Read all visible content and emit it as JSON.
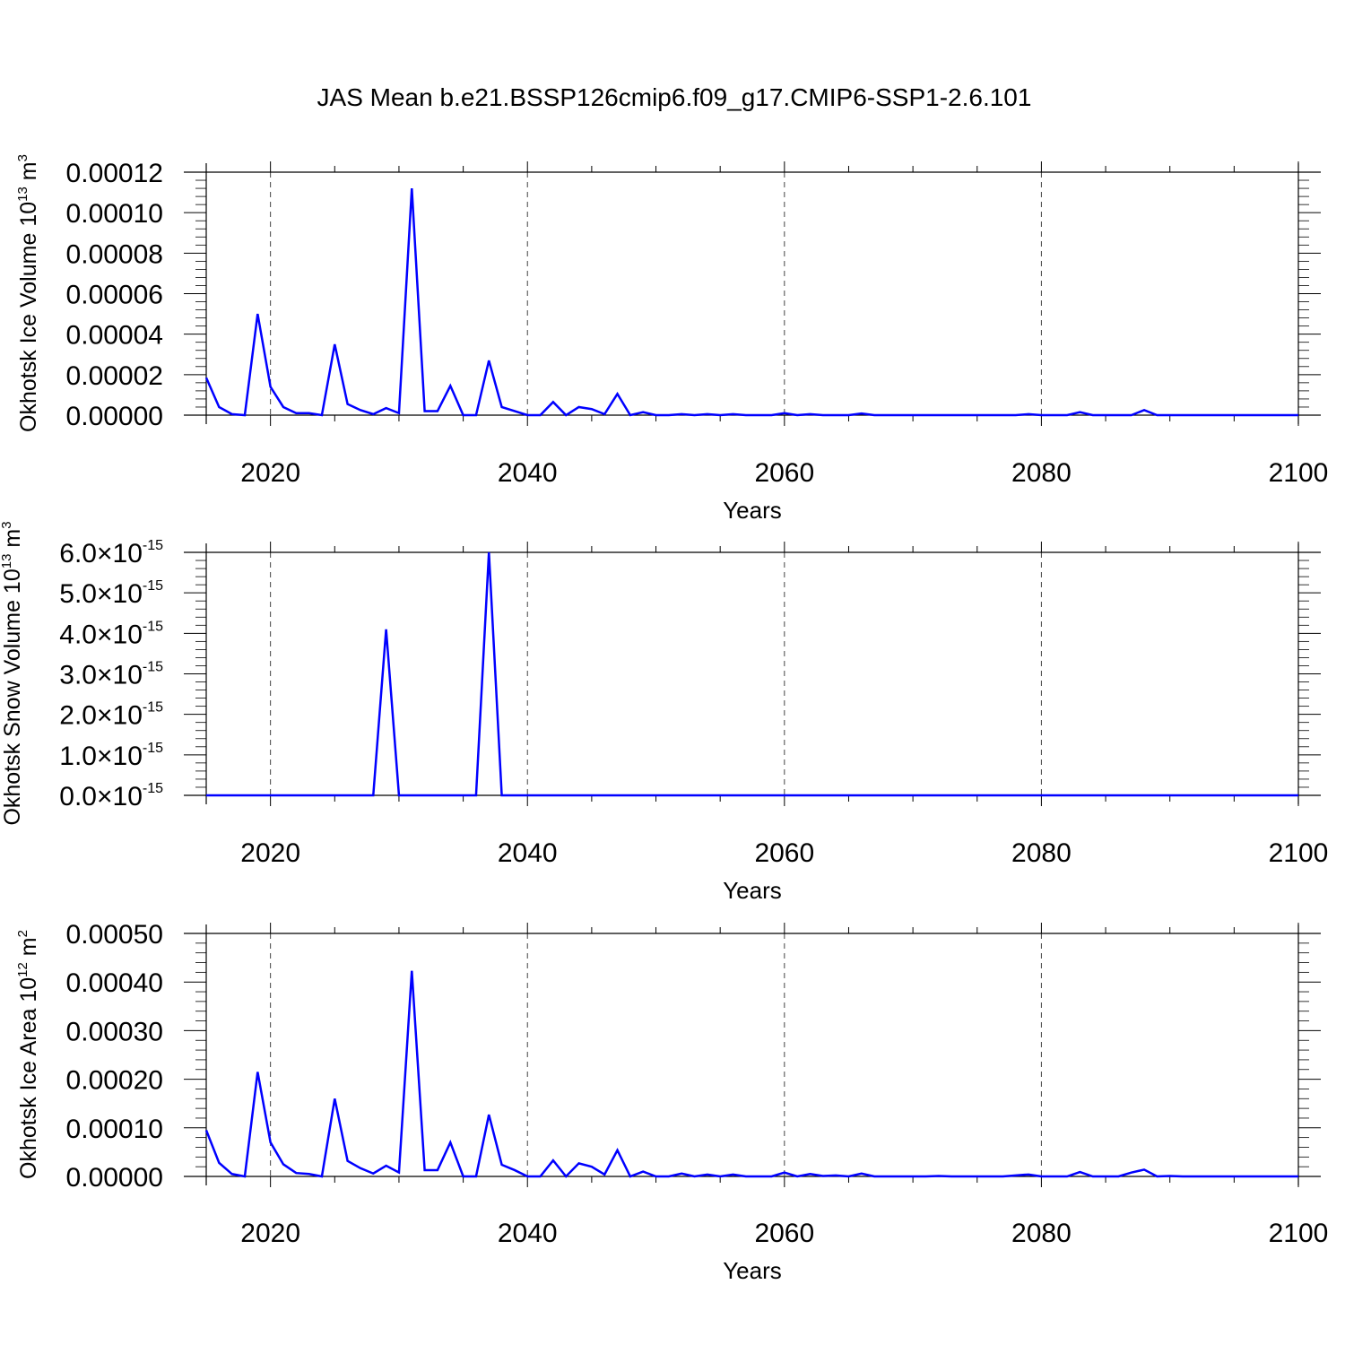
{
  "title": "JAS Mean b.e21.BSSP126cmip6.f09_g17.CMIP6-SSP1-2.6.101",
  "chart_data": [
    {
      "type": "line",
      "ylabel": "Okhotsk Ice Volume 10",
      "ylabel_exp": "13",
      "ylabel_unit": " m",
      "ylabel_unit_exp": "3",
      "xlabel": "Years",
      "xlim": [
        2015,
        2100
      ],
      "ylim": [
        0,
        0.00012
      ],
      "xticks": [
        "2020",
        "2040",
        "2060",
        "2080",
        "2100"
      ],
      "yticks": [
        "0.00000",
        "0.00002",
        "0.00004",
        "0.00006",
        "0.00008",
        "0.00010",
        "0.00012"
      ],
      "grid": "vertical dashed at major x ticks",
      "color": "#0000ff",
      "x_start": 2015,
      "values": [
        1.85e-05,
        4e-06,
        5e-07,
        0.0,
        5e-05,
        1.4e-05,
        4e-06,
        1e-06,
        1e-06,
        0.0,
        3.5e-05,
        5.5e-06,
        2.5e-06,
        5e-07,
        3.5e-06,
        1e-06,
        0.000112,
        2e-06,
        2e-06,
        1.45e-05,
        0.0,
        0.0,
        2.7e-05,
        4e-06,
        2e-06,
        0.0,
        0.0,
        6.5e-06,
        0.0,
        4e-06,
        3e-06,
        5e-07,
        1.05e-05,
        0.0,
        1.5e-06,
        0.0,
        0.0,
        5e-07,
        0.0,
        5e-07,
        0.0,
        5e-07,
        0.0,
        0.0,
        0.0,
        1e-06,
        0.0,
        5e-07,
        0.0,
        0.0,
        0.0,
        1e-06,
        0.0,
        0.0,
        0.0,
        0.0,
        0.0,
        0.0,
        0.0,
        0.0,
        0.0,
        0.0,
        0.0,
        0.0,
        0.0,
        0.0,
        0.0,
        0.0,
        0.0,
        0.0,
        0.0,
        0.0,
        0.0,
        0.0,
        0.0,
        0.0,
        0.0,
        0.0,
        0.0,
        0.0,
        0.0,
        0.0,
        0.0,
        0.0,
        0.0,
        0.0
      ],
      "spikes": [
        [
          2066,
          8e-07
        ],
        [
          2079,
          5e-07
        ],
        [
          2083,
          1.5e-06
        ],
        [
          2088,
          2.5e-06
        ]
      ]
    },
    {
      "type": "line",
      "ylabel": "Okhotsk Snow Volume 10",
      "ylabel_exp": "13",
      "ylabel_unit": " m",
      "ylabel_unit_exp": "3",
      "xlabel": "Years",
      "xlim": [
        2015,
        2100
      ],
      "ylim": [
        0,
        6e-15
      ],
      "xticks": [
        "2020",
        "2040",
        "2060",
        "2080",
        "2100"
      ],
      "yticks": [
        {
          "mant": "0.0",
          "exp": "-15"
        },
        {
          "mant": "1.0",
          "exp": "-15"
        },
        {
          "mant": "2.0",
          "exp": "-15"
        },
        {
          "mant": "3.0",
          "exp": "-15"
        },
        {
          "mant": "4.0",
          "exp": "-15"
        },
        {
          "mant": "5.0",
          "exp": "-15"
        },
        {
          "mant": "6.0",
          "exp": "-15"
        }
      ],
      "ytick_times": "×10",
      "grid": "vertical dashed at major x ticks",
      "color": "#0000ff",
      "x_start": 2015,
      "values_nonzero": [
        [
          2029,
          4.1e-15
        ],
        [
          2037,
          6e-15
        ]
      ]
    },
    {
      "type": "line",
      "ylabel": "Okhotsk Ice Area 10",
      "ylabel_exp": "12",
      "ylabel_unit": " m",
      "ylabel_unit_exp": "2",
      "xlabel": "Years",
      "xlim": [
        2015,
        2100
      ],
      "ylim": [
        0,
        0.0005
      ],
      "xticks": [
        "2020",
        "2040",
        "2060",
        "2080",
        "2100"
      ],
      "yticks": [
        "0.00000",
        "0.00010",
        "0.00020",
        "0.00030",
        "0.00040",
        "0.00050"
      ],
      "grid": "vertical dashed at major x ticks",
      "color": "#0000ff",
      "x_start": 2015,
      "values": [
        9.5e-05,
        2.8e-05,
        5e-06,
        0.0,
        0.000215,
        7e-05,
        2.5e-05,
        7e-06,
        5e-06,
        0.0,
        0.00016,
        3.2e-05,
        1.7e-05,
        6e-06,
        2.2e-05,
        8e-06,
        0.000423,
        1.3e-05,
        1.3e-05,
        7e-05,
        0.0,
        0.0,
        0.000127,
        2.4e-05,
        1.3e-05,
        0.0,
        0.0,
        3.3e-05,
        0.0,
        2.7e-05,
        2e-05,
        4e-06,
        5.4e-05,
        0.0,
        1e-05,
        0.0,
        0.0,
        6e-06,
        0.0,
        4e-06,
        0.0,
        4e-06,
        0.0,
        0.0,
        0.0,
        8e-06,
        0.0,
        5e-06,
        1e-06,
        2e-06,
        0.0,
        6e-06,
        0.0,
        0.0,
        0.0,
        0.0,
        0.0,
        1e-06,
        0.0,
        0.0,
        0.0,
        0.0,
        0.0,
        2e-06,
        0.0,
        0.0,
        0.0,
        0.0,
        0.0,
        0.0,
        0.0,
        0.0,
        8e-06,
        0.0,
        0.0,
        1e-06,
        0.0,
        0.0,
        0.0,
        0.0,
        0.0,
        0.0,
        0.0,
        0.0,
        0.0,
        0.0
      ],
      "spikes": [
        [
          2066,
          6e-06
        ],
        [
          2079,
          4e-06
        ],
        [
          2083,
          9e-06
        ],
        [
          2088,
          1.4e-05
        ]
      ]
    }
  ]
}
